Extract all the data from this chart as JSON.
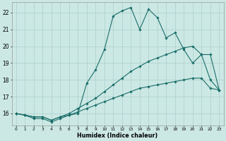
{
  "xlabel": "Humidex (Indice chaleur)",
  "background_color": "#cce8e4",
  "grid_color": "#aacfcb",
  "line_color": "#1a6e6a",
  "xlim_min": -0.5,
  "xlim_max": 23.5,
  "ylim_min": 15.3,
  "ylim_max": 22.6,
  "yticks": [
    16,
    17,
    18,
    19,
    20,
    21,
    22
  ],
  "xticks": [
    0,
    1,
    2,
    3,
    4,
    5,
    6,
    7,
    8,
    9,
    10,
    11,
    12,
    13,
    14,
    15,
    16,
    17,
    18,
    19,
    20,
    21,
    22,
    23
  ],
  "line1_x": [
    0,
    1,
    2,
    3,
    4,
    5,
    6,
    7,
    8,
    9,
    10,
    11,
    12,
    13,
    14,
    15,
    16,
    17,
    18,
    19,
    20,
    21,
    22,
    23
  ],
  "line1_y": [
    16.0,
    15.9,
    15.8,
    15.8,
    15.6,
    15.8,
    15.9,
    16.0,
    17.8,
    18.6,
    19.8,
    21.8,
    22.1,
    22.3,
    21.0,
    22.2,
    21.7,
    20.5,
    20.8,
    19.8,
    19.0,
    19.5,
    18.0,
    17.4
  ],
  "line2_x": [
    0,
    1,
    2,
    3,
    4,
    5,
    6,
    7,
    8,
    9,
    10,
    11,
    12,
    13,
    14,
    15,
    16,
    17,
    18,
    19,
    20,
    21,
    22,
    23
  ],
  "line2_y": [
    16.0,
    15.9,
    15.8,
    15.8,
    15.6,
    15.8,
    16.0,
    16.3,
    16.6,
    16.9,
    17.3,
    17.7,
    18.1,
    18.5,
    18.8,
    19.1,
    19.3,
    19.5,
    19.7,
    19.9,
    20.0,
    19.5,
    19.5,
    17.4
  ],
  "line3_x": [
    0,
    1,
    2,
    3,
    4,
    5,
    6,
    7,
    8,
    9,
    10,
    11,
    12,
    13,
    14,
    15,
    16,
    17,
    18,
    19,
    20,
    21,
    22,
    23
  ],
  "line3_y": [
    16.0,
    15.9,
    15.7,
    15.7,
    15.5,
    15.7,
    15.9,
    16.1,
    16.3,
    16.5,
    16.7,
    16.9,
    17.1,
    17.3,
    17.5,
    17.6,
    17.7,
    17.8,
    17.9,
    18.0,
    18.1,
    18.1,
    17.5,
    17.4
  ]
}
